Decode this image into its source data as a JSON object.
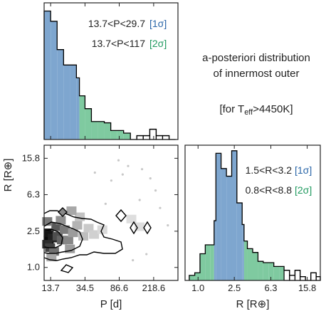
{
  "caption": {
    "line1": "a-posteriori distribution",
    "line2": "of innermost outer",
    "line3_prefix": "[for T",
    "line3_sub": "eff",
    "line3_suffix": ">4450K]"
  },
  "colors": {
    "sigma1_fill": "#7ea6cf",
    "sigma1_text": "#2a66a8",
    "sigma2_fill": "#7fcaa0",
    "sigma2_text": "#219a60",
    "tail_outline": "#000000"
  },
  "chart_data": [
    {
      "id": "P_histogram",
      "type": "bar",
      "title": "",
      "xlabel": "",
      "ylabel": "",
      "x_scale": "log",
      "xlim": [
        11.5,
        420
      ],
      "ylim": [
        0,
        1.0
      ],
      "x_ticks": [
        13.7,
        34.5,
        86.6,
        218.6
      ],
      "annotations": [
        {
          "range_text": "13.7<P<29.7",
          "sigma_text": "[1σ]",
          "level": "1sigma"
        },
        {
          "range_text": "13.7<P<117",
          "sigma_text": "[2σ]",
          "level": "2sigma"
        }
      ],
      "bins": [
        {
          "lo": 11.5,
          "hi": 13.7,
          "value": 1.0,
          "region": "1sigma"
        },
        {
          "lo": 13.7,
          "hi": 16.3,
          "value": 0.92,
          "region": "1sigma"
        },
        {
          "lo": 16.3,
          "hi": 19.4,
          "value": 0.7,
          "region": "1sigma"
        },
        {
          "lo": 19.4,
          "hi": 23.1,
          "value": 0.58,
          "region": "1sigma"
        },
        {
          "lo": 23.1,
          "hi": 27.4,
          "value": 0.58,
          "region": "1sigma"
        },
        {
          "lo": 27.4,
          "hi": 29.7,
          "value": 0.48,
          "region": "1sigma"
        },
        {
          "lo": 29.7,
          "hi": 34.5,
          "value": 0.34,
          "region": "2sigma"
        },
        {
          "lo": 34.5,
          "hi": 41.0,
          "value": 0.24,
          "region": "2sigma"
        },
        {
          "lo": 41.0,
          "hi": 48.7,
          "value": 0.14,
          "region": "2sigma"
        },
        {
          "lo": 48.7,
          "hi": 58.0,
          "value": 0.14,
          "region": "2sigma"
        },
        {
          "lo": 58.0,
          "hi": 69.0,
          "value": 0.13,
          "region": "2sigma"
        },
        {
          "lo": 69.0,
          "hi": 82.0,
          "value": 0.07,
          "region": "2sigma"
        },
        {
          "lo": 82.0,
          "hi": 97.5,
          "value": 0.07,
          "region": "2sigma"
        },
        {
          "lo": 97.5,
          "hi": 117.0,
          "value": 0.05,
          "region": "2sigma"
        },
        {
          "lo": 117.0,
          "hi": 139.0,
          "value": 0.0,
          "region": "tail"
        },
        {
          "lo": 139.0,
          "hi": 165.0,
          "value": 0.03,
          "region": "tail"
        },
        {
          "lo": 165.0,
          "hi": 197.0,
          "value": 0.03,
          "region": "tail"
        },
        {
          "lo": 197.0,
          "hi": 234.0,
          "value": 0.08,
          "region": "tail"
        },
        {
          "lo": 234.0,
          "hi": 278.0,
          "value": 0.03,
          "region": "tail"
        },
        {
          "lo": 278.0,
          "hi": 331.0,
          "value": 0.03,
          "region": "tail"
        },
        {
          "lo": 331.0,
          "hi": 394.0,
          "value": 0.0,
          "region": "tail"
        }
      ]
    },
    {
      "id": "P_R_density",
      "type": "heatmap",
      "title": "",
      "xlabel": "P [d]",
      "ylabel": "R [R⊕]",
      "x_scale": "log",
      "y_scale": "log",
      "xlim": [
        11.5,
        420
      ],
      "ylim": [
        0.72,
        22
      ],
      "x_ticks": [
        13.7,
        34.5,
        86.6,
        218.6
      ],
      "y_ticks": [
        1.0,
        2.5,
        6.3,
        15.8
      ],
      "cells": [
        {
          "P": 13.0,
          "R": 2.0,
          "density": 1.0
        },
        {
          "P": 13.0,
          "R": 2.4,
          "density": 0.95
        },
        {
          "P": 14.5,
          "R": 2.1,
          "density": 0.9
        },
        {
          "P": 12.5,
          "R": 1.8,
          "density": 0.85
        },
        {
          "P": 13.5,
          "R": 1.65,
          "density": 0.75
        },
        {
          "P": 16.5,
          "R": 2.2,
          "density": 0.7
        },
        {
          "P": 18.5,
          "R": 2.0,
          "density": 0.6
        },
        {
          "P": 16.0,
          "R": 2.8,
          "density": 0.65
        },
        {
          "P": 20.0,
          "R": 2.6,
          "density": 0.5
        },
        {
          "P": 12.5,
          "R": 3.2,
          "density": 0.5
        },
        {
          "P": 15.0,
          "R": 1.5,
          "density": 0.55
        },
        {
          "P": 22.0,
          "R": 2.0,
          "density": 0.45
        },
        {
          "P": 25.0,
          "R": 2.4,
          "density": 0.35
        },
        {
          "P": 23.0,
          "R": 1.6,
          "density": 0.35
        },
        {
          "P": 18.0,
          "R": 3.3,
          "density": 0.4
        },
        {
          "P": 28.0,
          "R": 2.9,
          "density": 0.25
        },
        {
          "P": 33.0,
          "R": 2.2,
          "density": 0.2
        },
        {
          "P": 38.0,
          "R": 2.7,
          "density": 0.15
        },
        {
          "P": 30.0,
          "R": 3.6,
          "density": 0.18
        },
        {
          "P": 14.0,
          "R": 1.3,
          "density": 0.3
        },
        {
          "P": 44.0,
          "R": 2.3,
          "density": 0.12
        },
        {
          "P": 55.0,
          "R": 2.6,
          "density": 0.08
        },
        {
          "P": 24.0,
          "R": 4.2,
          "density": 0.3
        },
        {
          "P": 120.0,
          "R": 3.4,
          "density": 0.06
        },
        {
          "P": 150.0,
          "R": 2.8,
          "density": 0.06
        }
      ],
      "scatter": [
        {
          "P": 70,
          "R": 9.0
        },
        {
          "P": 95,
          "R": 10.5
        },
        {
          "P": 160,
          "R": 12.0
        },
        {
          "P": 200,
          "R": 9.5
        },
        {
          "P": 150,
          "R": 5.5
        },
        {
          "P": 260,
          "R": 4.5
        },
        {
          "P": 60,
          "R": 5.0
        },
        {
          "P": 180,
          "R": 1.4
        },
        {
          "P": 320,
          "R": 2.9
        },
        {
          "P": 110,
          "R": 13.0
        },
        {
          "P": 45,
          "R": 11.0
        },
        {
          "P": 230,
          "R": 7.0
        },
        {
          "P": 125,
          "R": 1.2
        },
        {
          "P": 85,
          "R": 15.0
        }
      ]
    },
    {
      "id": "R_histogram",
      "type": "bar",
      "title": "",
      "xlabel": "R [R⊕]",
      "ylabel": "",
      "x_scale": "log",
      "xlim": [
        0.72,
        22
      ],
      "ylim": [
        0,
        1.0
      ],
      "x_ticks": [
        1.0,
        2.5,
        6.3,
        15.8
      ],
      "annotations": [
        {
          "range_text": "1.5<R<3.2",
          "sigma_text": "[1σ]",
          "level": "1sigma"
        },
        {
          "range_text": "0.8<R<8.8",
          "sigma_text": "[2σ]",
          "level": "2sigma"
        }
      ],
      "bins": [
        {
          "lo": 0.8,
          "hi": 0.92,
          "value": 0.04,
          "region": "2sigma"
        },
        {
          "lo": 0.92,
          "hi": 1.05,
          "value": 0.06,
          "region": "2sigma"
        },
        {
          "lo": 1.05,
          "hi": 1.2,
          "value": 0.21,
          "region": "2sigma"
        },
        {
          "lo": 1.2,
          "hi": 1.37,
          "value": 0.28,
          "region": "2sigma"
        },
        {
          "lo": 1.37,
          "hi": 1.5,
          "value": 0.28,
          "region": "2sigma"
        },
        {
          "lo": 1.5,
          "hi": 1.57,
          "value": 0.47,
          "region": "1sigma"
        },
        {
          "lo": 1.57,
          "hi": 1.79,
          "value": 1.0,
          "region": "1sigma"
        },
        {
          "lo": 1.79,
          "hi": 2.05,
          "value": 0.88,
          "region": "1sigma"
        },
        {
          "lo": 2.05,
          "hi": 2.34,
          "value": 0.82,
          "region": "1sigma"
        },
        {
          "lo": 2.34,
          "hi": 2.67,
          "value": 1.02,
          "region": "1sigma"
        },
        {
          "lo": 2.67,
          "hi": 3.05,
          "value": 0.61,
          "region": "1sigma"
        },
        {
          "lo": 3.05,
          "hi": 3.2,
          "value": 0.44,
          "region": "1sigma"
        },
        {
          "lo": 3.2,
          "hi": 3.48,
          "value": 0.31,
          "region": "2sigma"
        },
        {
          "lo": 3.48,
          "hi": 3.98,
          "value": 0.25,
          "region": "2sigma"
        },
        {
          "lo": 3.98,
          "hi": 4.55,
          "value": 0.22,
          "region": "2sigma"
        },
        {
          "lo": 4.55,
          "hi": 5.2,
          "value": 0.15,
          "region": "2sigma"
        },
        {
          "lo": 5.2,
          "hi": 5.94,
          "value": 0.14,
          "region": "2sigma"
        },
        {
          "lo": 5.94,
          "hi": 6.79,
          "value": 0.14,
          "region": "2sigma"
        },
        {
          "lo": 6.79,
          "hi": 7.76,
          "value": 0.11,
          "region": "2sigma"
        },
        {
          "lo": 7.76,
          "hi": 8.8,
          "value": 0.11,
          "region": "2sigma"
        },
        {
          "lo": 8.8,
          "hi": 10.1,
          "value": 0.08,
          "region": "tail"
        },
        {
          "lo": 10.1,
          "hi": 11.6,
          "value": 0.04,
          "region": "tail"
        },
        {
          "lo": 11.6,
          "hi": 13.2,
          "value": 0.08,
          "region": "tail"
        },
        {
          "lo": 13.2,
          "hi": 15.1,
          "value": 0.03,
          "region": "tail"
        },
        {
          "lo": 15.1,
          "hi": 17.3,
          "value": 0.0,
          "region": "tail"
        },
        {
          "lo": 17.3,
          "hi": 19.8,
          "value": 0.06,
          "region": "tail"
        },
        {
          "lo": 19.8,
          "hi": 22.0,
          "value": 0.03,
          "region": "tail"
        }
      ]
    }
  ]
}
